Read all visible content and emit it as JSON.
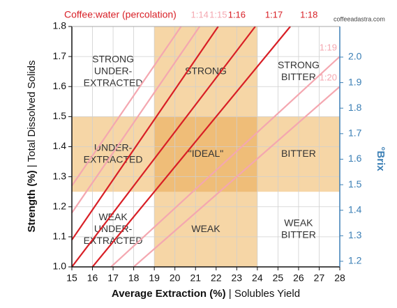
{
  "chart_data": {
    "type": "line",
    "title": "Coffee:water (percolation)",
    "watermark": "coffeeadastra.com",
    "x_label_bold": "Average Extraction (%)",
    "x_label_rest": "| Solubles Yield",
    "y_label_bold": "Strength (%)",
    "y_label_rest": "| Total Dissolved Solids",
    "y2_label": "°Brix",
    "xlim": [
      15,
      28
    ],
    "xticks": [
      15,
      16,
      17,
      18,
      19,
      20,
      21,
      22,
      23,
      24,
      25,
      26,
      27,
      28
    ],
    "ylim": [
      1.0,
      1.8
    ],
    "yticks": [
      1.0,
      1.1,
      1.2,
      1.3,
      1.4,
      1.5,
      1.6,
      1.7,
      1.8
    ],
    "y2lim": [
      1.178,
      2.12
    ],
    "y2ticks": [
      1.2,
      1.3,
      1.4,
      1.5,
      1.6,
      1.7,
      1.8,
      1.9,
      2.0
    ],
    "grid": true,
    "zones": {
      "x": [
        19,
        24
      ],
      "y": [
        1.25,
        1.5
      ],
      "color": "#f6d6a6",
      "overlap_color": "#efbd78"
    },
    "zone_labels": [
      [
        [
          "STRONG",
          "UNDER-",
          "EXTRACTED"
        ],
        [
          "STRONG"
        ],
        [
          "STRONG",
          "BITTER"
        ]
      ],
      [
        [
          "UNDER-",
          "EXTRACTED"
        ],
        [
          "\"IDEAL\""
        ],
        [
          "BITTER"
        ]
      ],
      [
        [
          "WEAK",
          "UNDER-",
          "EXTRACTED"
        ],
        [
          "WEAK"
        ],
        [
          "WEAK",
          "BITTER"
        ]
      ]
    ],
    "series": [
      {
        "name": "1:14",
        "color": "#f4a7b0",
        "x": [
          15,
          20.3
        ],
        "values": [
          1.27,
          1.8
        ]
      },
      {
        "name": "1:15",
        "color": "#f4a7b0",
        "x": [
          15,
          21.2
        ],
        "values": [
          1.18,
          1.8
        ]
      },
      {
        "name": "1:16",
        "color": "#d81f26",
        "x": [
          15,
          22.1
        ],
        "values": [
          1.09,
          1.8
        ]
      },
      {
        "name": "1:17",
        "color": "#d81f26",
        "x": [
          15,
          23.9
        ],
        "values": [
          1.0,
          1.8
        ]
      },
      {
        "name": "1:18",
        "color": "#d81f26",
        "x": [
          16,
          25.6
        ],
        "values": [
          1.0,
          1.8
        ]
      },
      {
        "name": "1:19",
        "color": "#f4a7b0",
        "x": [
          16.9,
          28
        ],
        "values": [
          1.0,
          1.7
        ]
      },
      {
        "name": "1:20",
        "color": "#f4a7b0",
        "x": [
          18,
          28
        ],
        "values": [
          1.0,
          1.6
        ]
      }
    ]
  }
}
